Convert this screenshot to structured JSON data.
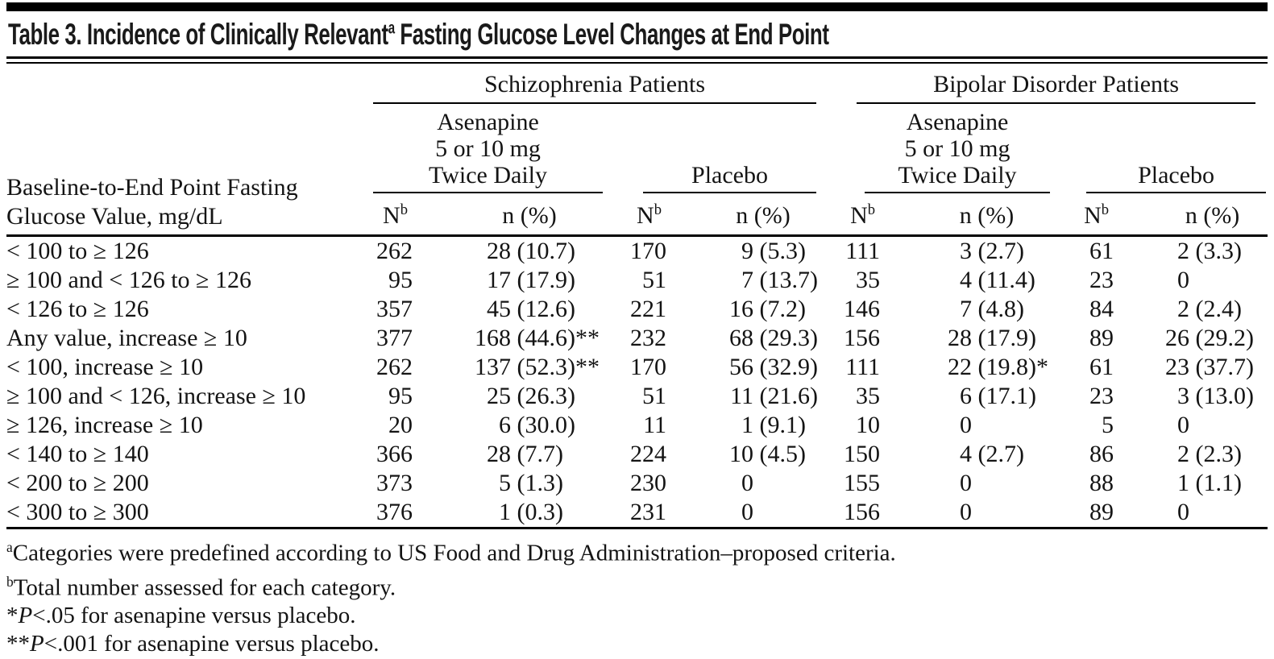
{
  "title": {
    "main": "Table 3. Incidence of Clinically Relevant",
    "sup": "a",
    "rest": " Fasting Glucose Level Changes at End Point"
  },
  "stub": {
    "line1": "Baseline-to-End Point Fasting",
    "line2": "Glucose Value, mg/dL"
  },
  "header": {
    "group1": "Schizophrenia Patients",
    "group2": "Bipolar Disorder Patients",
    "asenapine": [
      "Asenapine",
      "5 or 10 mg",
      "Twice Daily"
    ],
    "placebo": "Placebo",
    "n_label": "N",
    "n_sup": "b",
    "n_pct": "n (%)"
  },
  "rows": [
    {
      "label": "< 100 to ≥ 126",
      "cells": [
        "262",
        "28 (10.7)",
        "170",
        "9 (5.3)",
        "111",
        "3 (2.7)",
        "61",
        "2 (3.3)"
      ]
    },
    {
      "label": "≥ 100 and < 126 to ≥ 126",
      "cells": [
        "95",
        "17 (17.9)",
        "51",
        "7 (13.7)",
        "35",
        "4 (11.4)",
        "23",
        "0"
      ]
    },
    {
      "label": "< 126 to ≥ 126",
      "cells": [
        "357",
        "45 (12.6)",
        "221",
        "16 (7.2)",
        "146",
        "7 (4.8)",
        "84",
        "2 (2.4)"
      ]
    },
    {
      "label": "Any value, increase ≥ 10",
      "cells": [
        "377",
        "168 (44.6)**",
        "232",
        "68 (29.3)",
        "156",
        "28 (17.9)",
        "89",
        "26 (29.2)"
      ]
    },
    {
      "label": "< 100, increase ≥ 10",
      "cells": [
        "262",
        "137 (52.3)**",
        "170",
        "56 (32.9)",
        "111",
        "22 (19.8)*",
        "61",
        "23 (37.7)"
      ]
    },
    {
      "label": "≥ 100 and < 126, increase ≥ 10",
      "cells": [
        "95",
        "25 (26.3)",
        "51",
        "11 (21.6)",
        "35",
        "6 (17.1)",
        "23",
        "3 (13.0)"
      ]
    },
    {
      "label": "≥ 126, increase ≥ 10",
      "cells": [
        "20",
        "6 (30.0)",
        "11",
        "1 (9.1)",
        "10",
        "0",
        "5",
        "0"
      ]
    },
    {
      "label": "< 140 to ≥ 140",
      "cells": [
        "366",
        "28 (7.7)",
        "224",
        "10 (4.5)",
        "150",
        "4 (2.7)",
        "86",
        "2 (2.3)"
      ]
    },
    {
      "label": "< 200 to ≥ 200",
      "cells": [
        "373",
        "5 (1.3)",
        "230",
        "0",
        "155",
        "0",
        "88",
        "1 (1.1)"
      ]
    },
    {
      "label": "< 300 to ≥ 300",
      "cells": [
        "376",
        "1 (0.3)",
        "231",
        "0",
        "156",
        "0",
        "89",
        "0"
      ]
    }
  ],
  "footnotes": [
    {
      "marker": "a",
      "sup": true,
      "italic": "",
      "text": "Categories were predefined according to US Food and Drug Administration–proposed criteria."
    },
    {
      "marker": "b",
      "sup": true,
      "italic": "",
      "text": "Total number assessed for each category."
    },
    {
      "marker": "*",
      "sup": false,
      "italic": "P",
      "text": "<.05 for asenapine versus placebo."
    },
    {
      "marker": "**",
      "sup": false,
      "italic": "P",
      "text": "<.001 for asenapine versus placebo."
    }
  ],
  "colors": {
    "text": "#141414",
    "rule": "#000000",
    "background": "#ffffff"
  }
}
